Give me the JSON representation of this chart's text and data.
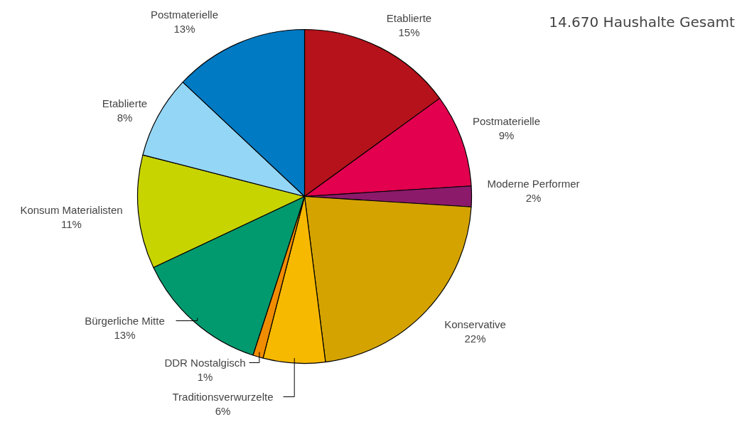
{
  "chart_data": {
    "type": "pie",
    "categories": [
      "Etablierte",
      "Postmaterielle",
      "Moderne Performer",
      "Konservative",
      "Traditionsverwurzelte",
      "DDR Nostalgisch",
      "Bürgerliche Mitte",
      "Konsum Materialisten",
      "Etablierte",
      "Postmaterielle"
    ],
    "values": [
      15,
      9,
      2,
      22,
      6,
      1,
      13,
      11,
      8,
      13
    ],
    "value_labels": [
      "15%",
      "9%",
      "2%",
      "22%",
      "6%",
      "1%",
      "13%",
      "11%",
      "8%",
      "13%"
    ],
    "colors": [
      "#b5121b",
      "#e2004f",
      "#8b1a6b",
      "#d4a300",
      "#f7b800",
      "#f08c00",
      "#009a6e",
      "#c8d400",
      "#94d6f5",
      "#007ac3"
    ],
    "annotations": [
      "14.670   Haushalte Gesamt"
    ]
  }
}
